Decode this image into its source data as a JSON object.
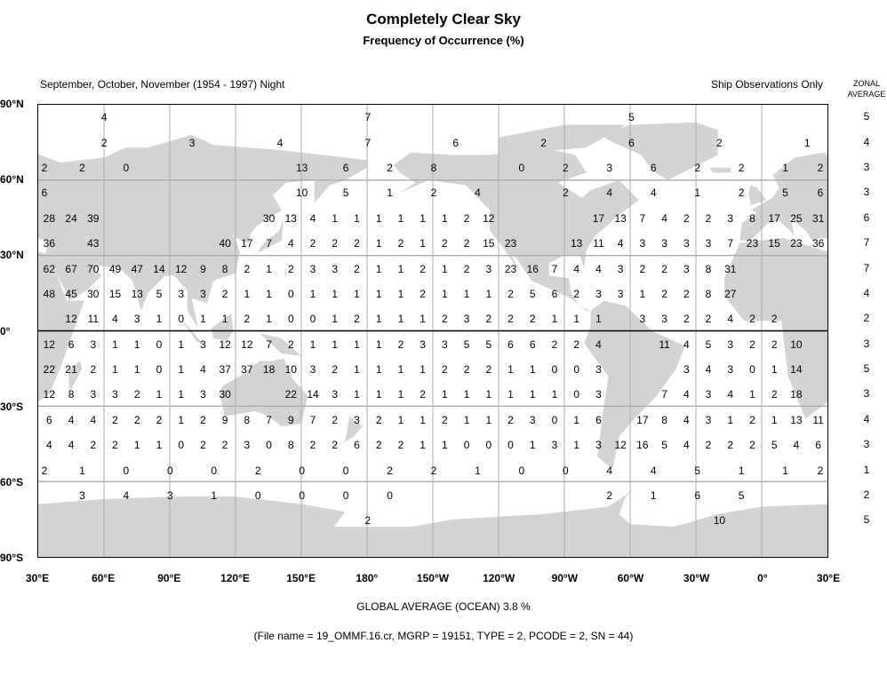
{
  "title": "Completely Clear Sky",
  "subtitle": "Frequency of Occurrence (%)",
  "period_label": "September, October, November (1954 - 1997) Night",
  "source_label": "Ship Observations Only",
  "zonal_header": [
    "ZONAL",
    "AVERAGE"
  ],
  "global_average": "GLOBAL AVERAGE (OCEAN)   3.8 %",
  "file_info": "(File name = 19_OMMF.16.cr, MGRP = 19151, TYPE = 2, PCODE = 2, SN = 44)",
  "colors": {
    "land": "#d3d3d3",
    "ocean": "#ffffff",
    "grid": "#aaaaaa",
    "border": "#000000"
  },
  "lat_labels": [
    {
      "lat": 90,
      "text": "90°N"
    },
    {
      "lat": 60,
      "text": "60°N"
    },
    {
      "lat": 30,
      "text": "30°N"
    },
    {
      "lat": 0,
      "text": "0°"
    },
    {
      "lat": -30,
      "text": "30°S"
    },
    {
      "lat": -60,
      "text": "60°S"
    },
    {
      "lat": -90,
      "text": "90°S"
    }
  ],
  "lon_labels": [
    "30°E",
    "60°E",
    "90°E",
    "120°E",
    "150°E",
    "180°",
    "150°W",
    "120°W",
    "90°W",
    "60°W",
    "30°W",
    "0°",
    "30°E"
  ],
  "chart_data": {
    "type": "gridded-map",
    "projection": "equirectangular",
    "lon_range": [
      30,
      390
    ],
    "lat_range": [
      -90,
      90
    ],
    "units": "%",
    "sparse_rows": [
      {
        "lat": 85,
        "cells": [
          [
            60,
            4
          ],
          [
            180,
            7
          ],
          [
            -60,
            5
          ]
        ]
      },
      {
        "lat": 75,
        "cells": [
          [
            60,
            2
          ],
          [
            100,
            3
          ],
          [
            140,
            4
          ],
          [
            180,
            7
          ],
          [
            -140,
            6
          ],
          [
            -100,
            2
          ],
          [
            -60,
            6
          ],
          [
            -20,
            2
          ],
          [
            20,
            1
          ]
        ]
      },
      {
        "lat": 65,
        "cells": [
          [
            30,
            2
          ],
          [
            50,
            2
          ],
          [
            70,
            0
          ],
          [
            150,
            13
          ],
          [
            170,
            6
          ],
          [
            -170,
            2
          ],
          [
            -150,
            8
          ],
          [
            -110,
            0
          ],
          [
            -90,
            2
          ],
          [
            -70,
            3
          ],
          [
            -50,
            6
          ],
          [
            -30,
            2
          ],
          [
            -10,
            2
          ],
          [
            10,
            1
          ]
        ]
      },
      {
        "lat": 55,
        "cells": [
          [
            30,
            6
          ],
          [
            150,
            10
          ],
          [
            170,
            5
          ],
          [
            -170,
            1
          ],
          [
            -150,
            2
          ],
          [
            -130,
            4
          ],
          [
            -90,
            2
          ],
          [
            -70,
            4
          ],
          [
            -50,
            4
          ],
          [
            -30,
            1
          ],
          [
            -10,
            2
          ],
          [
            10,
            5
          ]
        ]
      },
      {
        "lat": -55,
        "cells": [
          [
            30,
            2
          ],
          [
            50,
            1
          ],
          [
            70,
            0
          ],
          [
            90,
            0
          ],
          [
            110,
            0
          ],
          [
            130,
            2
          ],
          [
            150,
            0
          ],
          [
            170,
            0
          ],
          [
            -170,
            2
          ],
          [
            -150,
            2
          ],
          [
            -130,
            1
          ],
          [
            -110,
            0
          ],
          [
            -90,
            0
          ],
          [
            -70,
            4
          ],
          [
            -50,
            4
          ],
          [
            -30,
            5
          ],
          [
            -10,
            1
          ],
          [
            10,
            1
          ]
        ]
      },
      {
        "lat": -65,
        "cells": [
          [
            50,
            3
          ],
          [
            70,
            4
          ],
          [
            90,
            3
          ],
          [
            110,
            1
          ],
          [
            130,
            0
          ],
          [
            150,
            0
          ],
          [
            170,
            0
          ],
          [
            -170,
            0
          ],
          [
            -70,
            2
          ],
          [
            -50,
            1
          ],
          [
            -30,
            6
          ],
          [
            -10,
            5
          ]
        ]
      },
      {
        "lat": -75,
        "cells": [
          [
            180,
            2
          ],
          [
            -20,
            10
          ]
        ]
      }
    ],
    "grid_rows": {
      "start_lon": 35,
      "step": 10,
      "rows": [
        {
          "lat": 45,
          "values": [
            28,
            24,
            39,
            null,
            null,
            null,
            null,
            null,
            null,
            null,
            30,
            13,
            4,
            1,
            1,
            1,
            1,
            1,
            1,
            2,
            12,
            null,
            null,
            null,
            null,
            17,
            13,
            7,
            4,
            2,
            2,
            3,
            8,
            17,
            25,
            31
          ]
        },
        {
          "lat": 35,
          "values": [
            36,
            null,
            43,
            null,
            null,
            null,
            null,
            null,
            40,
            17,
            7,
            4,
            2,
            2,
            2,
            1,
            2,
            1,
            2,
            2,
            15,
            23,
            null,
            null,
            13,
            11,
            4,
            3,
            3,
            3,
            3,
            7,
            23,
            15,
            23,
            36
          ]
        },
        {
          "lat": 25,
          "values": [
            62,
            67,
            70,
            49,
            47,
            14,
            12,
            9,
            8,
            2,
            1,
            2,
            3,
            3,
            2,
            1,
            1,
            2,
            1,
            2,
            3,
            23,
            16,
            7,
            4,
            4,
            3,
            2,
            2,
            3,
            8,
            31,
            null,
            null,
            null,
            null
          ]
        },
        {
          "lat": 15,
          "values": [
            48,
            45,
            30,
            15,
            13,
            5,
            3,
            3,
            2,
            1,
            1,
            0,
            1,
            1,
            1,
            1,
            1,
            2,
            1,
            1,
            1,
            2,
            5,
            6,
            2,
            3,
            3,
            1,
            2,
            2,
            8,
            27,
            null,
            null,
            null,
            null
          ]
        },
        {
          "lat": 5,
          "values": [
            null,
            12,
            11,
            4,
            3,
            1,
            0,
            1,
            1,
            2,
            1,
            0,
            0,
            1,
            2,
            1,
            1,
            1,
            2,
            3,
            2,
            2,
            2,
            1,
            1,
            1,
            null,
            3,
            3,
            2,
            2,
            4,
            2,
            2,
            null,
            null
          ]
        },
        {
          "lat": -5,
          "values": [
            12,
            6,
            3,
            1,
            1,
            0,
            1,
            3,
            12,
            12,
            7,
            2,
            1,
            1,
            1,
            1,
            2,
            3,
            3,
            5,
            5,
            6,
            6,
            2,
            2,
            4,
            null,
            null,
            11,
            4,
            5,
            3,
            2,
            2,
            10,
            null
          ]
        },
        {
          "lat": -15,
          "values": [
            22,
            21,
            2,
            1,
            1,
            0,
            1,
            4,
            37,
            37,
            18,
            10,
            3,
            2,
            1,
            1,
            1,
            1,
            2,
            2,
            2,
            1,
            1,
            0,
            0,
            3,
            null,
            null,
            null,
            3,
            4,
            3,
            0,
            1,
            14,
            null
          ]
        },
        {
          "lat": -25,
          "values": [
            12,
            8,
            3,
            3,
            2,
            1,
            1,
            3,
            30,
            null,
            null,
            22,
            14,
            3,
            1,
            1,
            1,
            2,
            1,
            1,
            1,
            1,
            1,
            1,
            0,
            3,
            null,
            null,
            7,
            4,
            3,
            4,
            1,
            2,
            18,
            null
          ]
        },
        {
          "lat": -35,
          "values": [
            6,
            4,
            4,
            2,
            2,
            2,
            1,
            2,
            9,
            8,
            7,
            9,
            7,
            2,
            3,
            2,
            1,
            1,
            2,
            1,
            1,
            2,
            3,
            0,
            1,
            6,
            null,
            17,
            8,
            4,
            3,
            1,
            2,
            1,
            13,
            11
          ]
        },
        {
          "lat": -45,
          "values": [
            4,
            4,
            2,
            2,
            1,
            1,
            0,
            2,
            2,
            3,
            0,
            8,
            2,
            2,
            6,
            2,
            2,
            1,
            1,
            0,
            0,
            0,
            1,
            3,
            1,
            3,
            12,
            16,
            5,
            4,
            2,
            2,
            2,
            5,
            4,
            6
          ]
        }
      ]
    },
    "zonal_average": [
      {
        "lat": 85,
        "value": 5
      },
      {
        "lat": 75,
        "value": 4
      },
      {
        "lat": 65,
        "value": 3
      },
      {
        "lat": 55,
        "value": 3
      },
      {
        "lat": 45,
        "value": 6
      },
      {
        "lat": 35,
        "value": 7
      },
      {
        "lat": 25,
        "value": 7
      },
      {
        "lat": 15,
        "value": 4
      },
      {
        "lat": 5,
        "value": 2
      },
      {
        "lat": -5,
        "value": 3
      },
      {
        "lat": -15,
        "value": 5
      },
      {
        "lat": -25,
        "value": 3
      },
      {
        "lat": -35,
        "value": 4
      },
      {
        "lat": -45,
        "value": 3
      },
      {
        "lat": -55,
        "value": 1
      },
      {
        "lat": -65,
        "value": 2
      },
      {
        "lat": -75,
        "value": 5
      }
    ]
  }
}
